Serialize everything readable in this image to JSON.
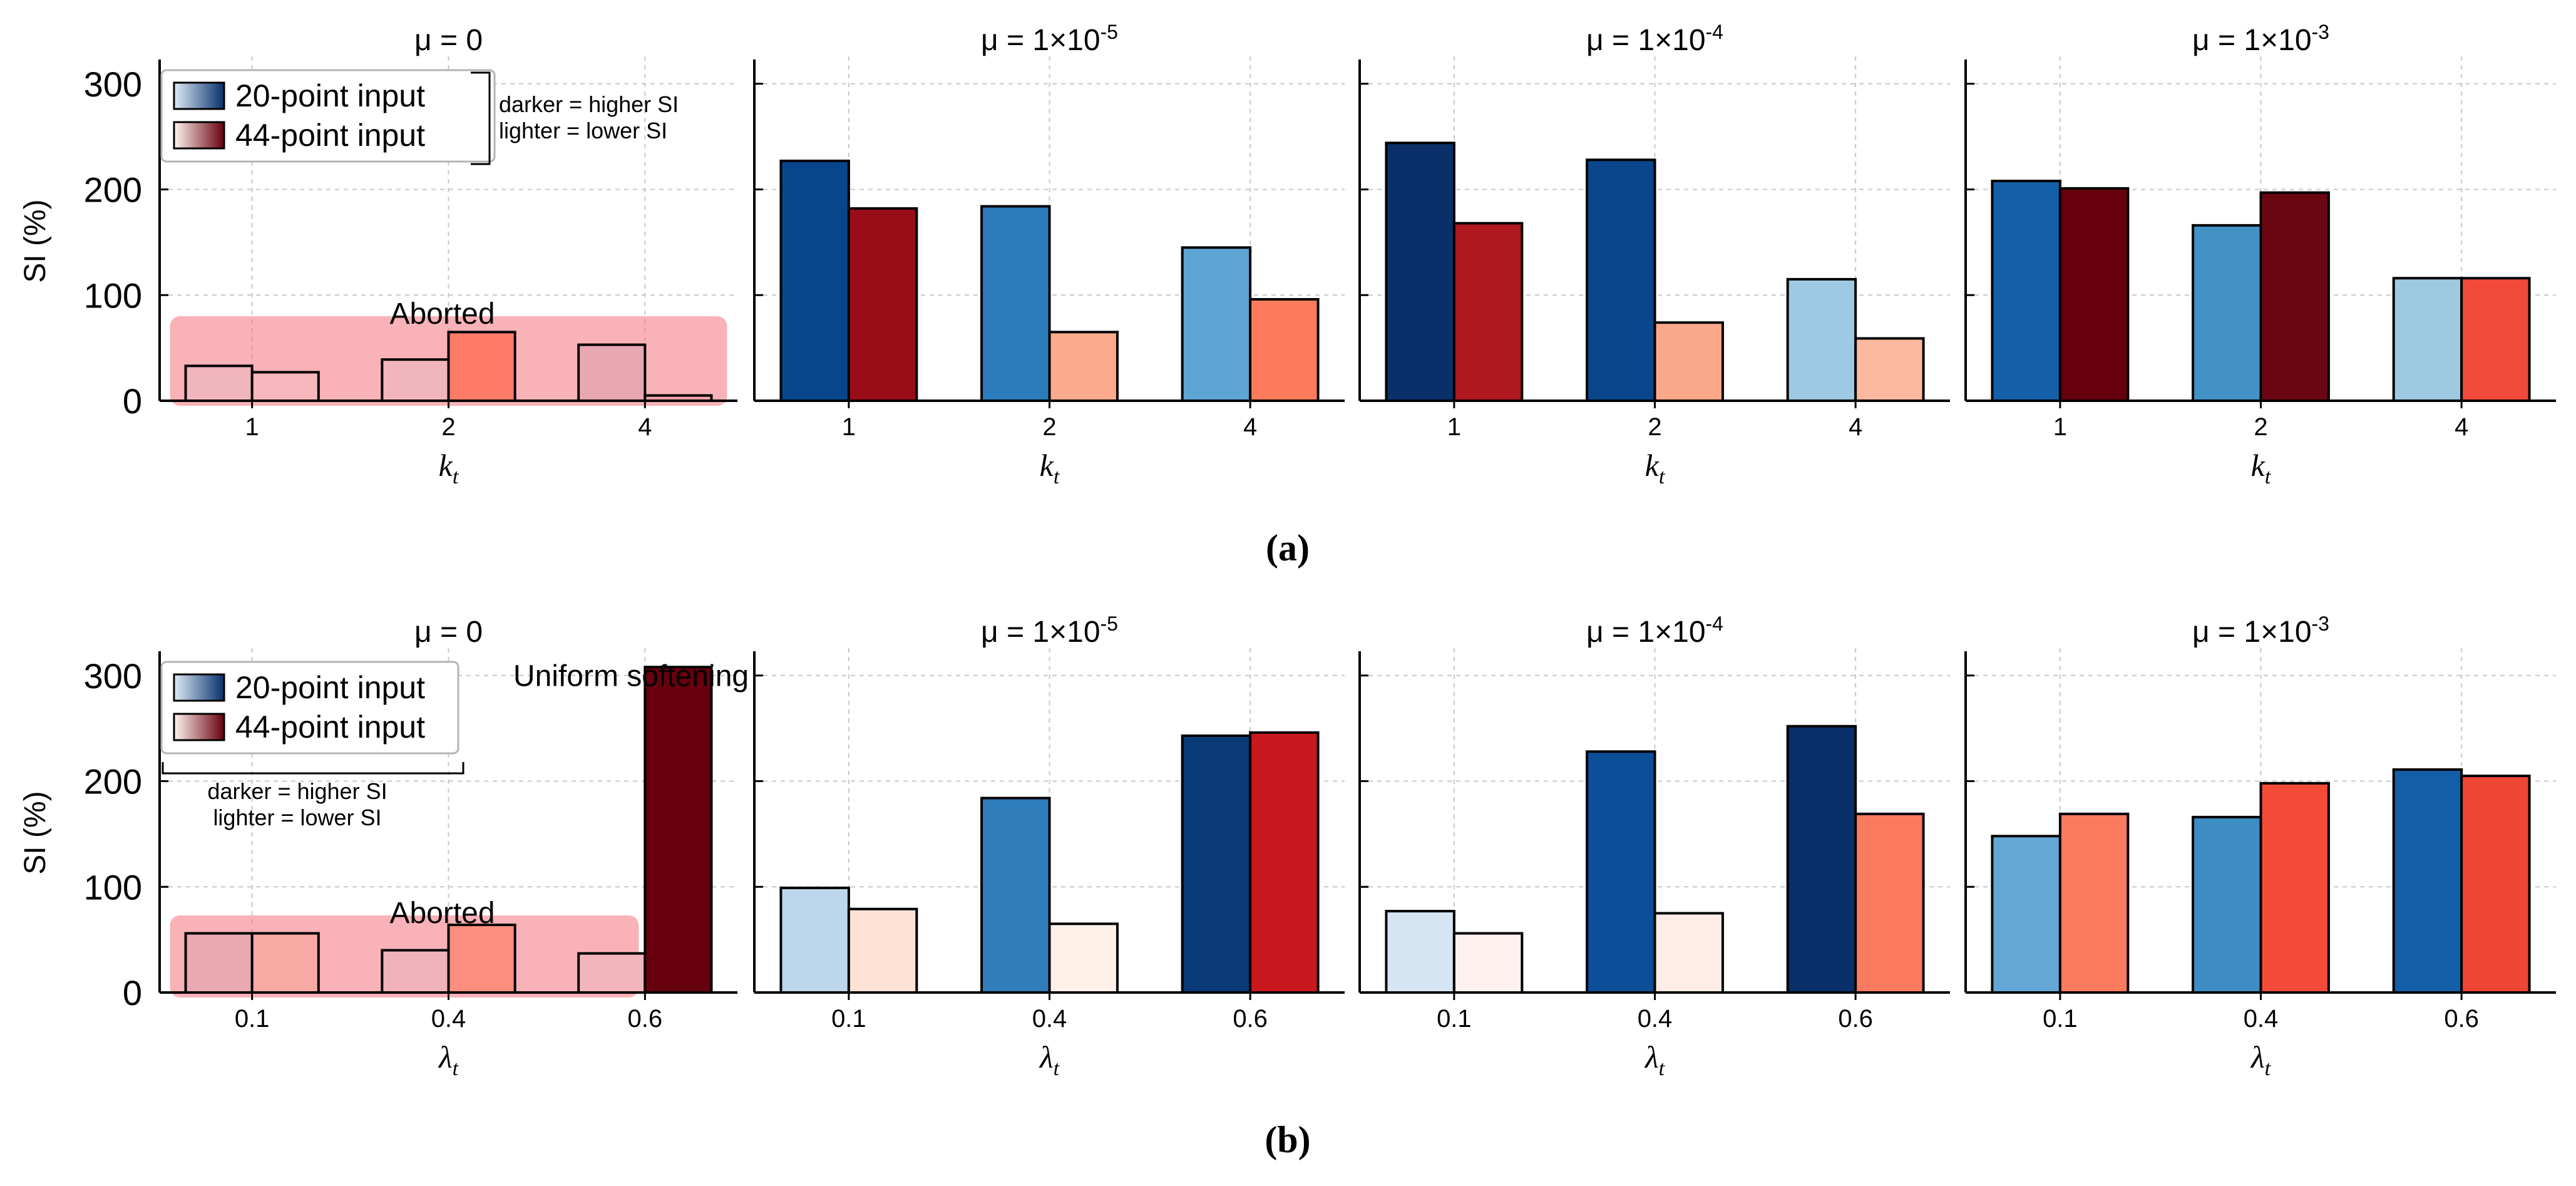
{
  "figure": {
    "caption_a": "(a)",
    "caption_b": "(b)",
    "y_axis_label": "SI (%)",
    "y_ticks": [
      0,
      100,
      200,
      300
    ],
    "ylim": [
      0,
      320
    ]
  },
  "legend": {
    "entry_blue": "20-point input",
    "entry_red": "44-point input",
    "note_darker": "darker = higher SI",
    "note_lighter": "lighter = lower SI"
  },
  "colors": {
    "blue_dark": "#08306b",
    "blue_light": "#deebf7",
    "red_dark": "#67000d",
    "red_light": "#fff5f0",
    "aborted_fill": "#f4737b",
    "grid": "#c8c8c8"
  },
  "chart_data": [
    {
      "row": "a",
      "type": "bar",
      "title": "μ = 0",
      "xlabel": "k",
      "xlabel_sub": "t",
      "categories": [
        "1",
        "2",
        "4"
      ],
      "series": [
        {
          "name": "20-point input",
          "values": [
            33,
            39,
            53
          ]
        },
        {
          "name": "44-point input",
          "values": [
            27,
            65,
            5
          ]
        }
      ],
      "bar_colors": [
        [
          "#f1b5bd",
          "#f1b5bd",
          "#e8a8b3"
        ],
        [
          "#f6b7bd",
          "#fe7b68",
          "#f5a5a9"
        ]
      ],
      "annotation": "Aborted"
    },
    {
      "row": "a",
      "type": "bar",
      "title": "μ = 1×10",
      "title_sup": "-5",
      "xlabel": "k",
      "xlabel_sub": "t",
      "categories": [
        "1",
        "2",
        "4"
      ],
      "series": [
        {
          "name": "20-point input",
          "values": [
            227,
            184,
            145
          ]
        },
        {
          "name": "44-point input",
          "values": [
            182,
            65,
            96
          ]
        }
      ],
      "bar_colors": [
        [
          "#08468c",
          "#2c7bba",
          "#5fa5d3"
        ],
        [
          "#980d17",
          "#fcaa8c",
          "#fb7b5c"
        ]
      ]
    },
    {
      "row": "a",
      "type": "bar",
      "title": "μ = 1×10",
      "title_sup": "-4",
      "xlabel": "k",
      "xlabel_sub": "t",
      "categories": [
        "1",
        "2",
        "4"
      ],
      "series": [
        {
          "name": "20-point input",
          "values": [
            244,
            228,
            115
          ]
        },
        {
          "name": "44-point input",
          "values": [
            168,
            74,
            59
          ]
        }
      ],
      "bar_colors": [
        [
          "#0a3069",
          "#0a468c",
          "#9dcae2"
        ],
        [
          "#b01820",
          "#fba88a",
          "#fdb9a0"
        ]
      ]
    },
    {
      "row": "a",
      "type": "bar",
      "title": "μ = 1×10",
      "title_sup": "-3",
      "xlabel": "k",
      "xlabel_sub": "t",
      "categories": [
        "1",
        "2",
        "4"
      ],
      "series": [
        {
          "name": "20-point input",
          "values": [
            208,
            166,
            116
          ]
        },
        {
          "name": "44-point input",
          "values": [
            201,
            197,
            116
          ]
        }
      ],
      "bar_colors": [
        [
          "#1360a8",
          "#4292c6",
          "#9ecae1"
        ],
        [
          "#67000d",
          "#6a0712",
          "#f24a3a"
        ]
      ]
    },
    {
      "row": "b",
      "type": "bar",
      "title": "μ = 0",
      "xlabel": "λ",
      "xlabel_sub": "t",
      "categories": [
        "0.1",
        "0.4",
        "0.6"
      ],
      "series": [
        {
          "name": "20-point input",
          "values": [
            56,
            40,
            37
          ]
        },
        {
          "name": "44-point input",
          "values": [
            56,
            64,
            308
          ]
        }
      ],
      "bar_colors": [
        [
          "#e9aab2",
          "#f0b3bb",
          "#f3b5bc"
        ],
        [
          "#f9a9a4",
          "#fe8f80",
          "#67000d"
        ]
      ],
      "annotation": "Aborted",
      "annotation_2": "Uniform softening"
    },
    {
      "row": "b",
      "type": "bar",
      "title": "μ = 1×10",
      "title_sup": "-5",
      "xlabel": "λ",
      "xlabel_sub": "t",
      "categories": [
        "0.1",
        "0.4",
        "0.6"
      ],
      "series": [
        {
          "name": "20-point input",
          "values": [
            99,
            184,
            243
          ]
        },
        {
          "name": "44-point input",
          "values": [
            79,
            65,
            246
          ]
        }
      ],
      "bar_colors": [
        [
          "#bcd7ec",
          "#2f7dbb",
          "#0a3a78"
        ],
        [
          "#fee2d5",
          "#fff0e8",
          "#c9181e"
        ]
      ]
    },
    {
      "row": "b",
      "type": "bar",
      "title": "μ = 1×10",
      "title_sup": "-4",
      "xlabel": "λ",
      "xlabel_sub": "t",
      "categories": [
        "0.1",
        "0.4",
        "0.6"
      ],
      "series": [
        {
          "name": "20-point input",
          "values": [
            77,
            228,
            252
          ]
        },
        {
          "name": "44-point input",
          "values": [
            56,
            75,
            169
          ]
        }
      ],
      "bar_colors": [
        [
          "#d6e5f4",
          "#0b4f98",
          "#082f69"
        ],
        [
          "#fff2ee",
          "#feede6",
          "#fc7b60"
        ]
      ]
    },
    {
      "row": "b",
      "type": "bar",
      "title": "μ = 1×10",
      "title_sup": "-3",
      "xlabel": "λ",
      "xlabel_sub": "t",
      "categories": [
        "0.1",
        "0.4",
        "0.6"
      ],
      "series": [
        {
          "name": "20-point input",
          "values": [
            148,
            166,
            211
          ]
        },
        {
          "name": "44-point input",
          "values": [
            169,
            198,
            205
          ]
        }
      ],
      "bar_colors": [
        [
          "#63a8d5",
          "#3d8dc4",
          "#135fa7"
        ],
        [
          "#fb7b5f",
          "#f34b38",
          "#ef4535"
        ]
      ]
    }
  ]
}
